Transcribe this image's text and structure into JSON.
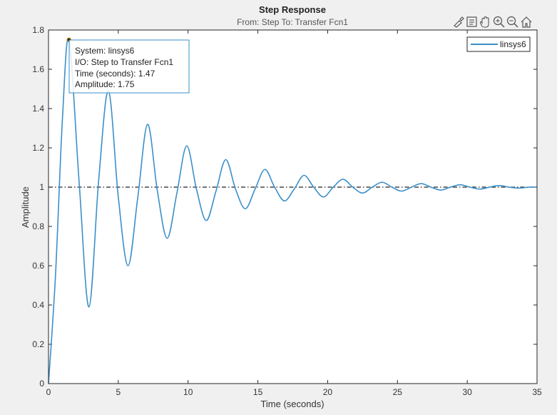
{
  "figure": {
    "title": "Step Response",
    "subtitle": "From: Step  To: Transfer Fcn1"
  },
  "toolbar": {
    "icons": [
      "brush-icon",
      "datatip-icon",
      "pan-icon",
      "zoom-in-icon",
      "zoom-out-icon",
      "home-icon"
    ]
  },
  "legend": {
    "label": "linsys6"
  },
  "datatip": {
    "system": "System: linsys6",
    "io": "I/O: Step to Transfer Fcn1",
    "time": "Time (seconds): 1.47",
    "amplitude": "Amplitude: 1.75"
  },
  "colors": {
    "series": "#3b8fc9",
    "background": "#f0f0f0",
    "axes": "#ffffff",
    "reference_line": "#222222"
  },
  "chart_data": {
    "type": "line",
    "title": "Step Response",
    "subtitle": "From: Step  To: Transfer Fcn1",
    "xlabel": "Time (seconds)",
    "ylabel": "Amplitude",
    "xlim": [
      0,
      35
    ],
    "ylim": [
      0,
      1.8
    ],
    "xticks": [
      0,
      5,
      10,
      15,
      20,
      25,
      30,
      35
    ],
    "yticks": [
      0,
      0.2,
      0.4,
      0.6,
      0.8,
      1,
      1.2,
      1.4,
      1.6,
      1.8
    ],
    "ytick_labels": [
      "0",
      "0.2",
      "0.4",
      "0.6",
      "0.8",
      "1",
      "1.2",
      "1.4",
      "1.6",
      "1.8"
    ],
    "grid": false,
    "legend_position": "top-right",
    "reference_line": {
      "y": 1,
      "style": "dash-dot"
    },
    "series": [
      {
        "name": "linsys6",
        "x": [
          0,
          0.5,
          1.0,
          1.47,
          2.2,
          2.9,
          3.6,
          4.3,
          5.0,
          5.7,
          6.4,
          7.1,
          7.8,
          8.5,
          9.2,
          9.9,
          10.6,
          11.3,
          12.0,
          12.7,
          13.4,
          14.1,
          14.8,
          15.5,
          16.2,
          16.9,
          17.6,
          18.3,
          19.0,
          19.7,
          20.4,
          21.1,
          21.8,
          22.5,
          23.2,
          23.9,
          24.6,
          25.3,
          26.0,
          26.7,
          27.4,
          28.1,
          28.8,
          29.5,
          30.2,
          30.9,
          31.6,
          32.3,
          33.0,
          33.7,
          34.4,
          35.0
        ],
        "y": [
          0,
          0.55,
          1.35,
          1.75,
          1.02,
          0.39,
          1.04,
          1.49,
          0.95,
          0.6,
          0.95,
          1.32,
          0.98,
          0.74,
          0.97,
          1.21,
          0.99,
          0.83,
          0.98,
          1.14,
          0.99,
          0.89,
          0.99,
          1.09,
          1.0,
          0.93,
          0.99,
          1.06,
          1.0,
          0.95,
          1.0,
          1.04,
          1.0,
          0.97,
          1.0,
          1.025,
          1.0,
          0.98,
          1.0,
          1.018,
          1.0,
          0.985,
          1.0,
          1.012,
          1.0,
          0.99,
          1.0,
          1.008,
          1.0,
          0.995,
          1.0,
          1.0
        ]
      }
    ],
    "datatip_point": {
      "x": 1.47,
      "y": 1.75
    }
  }
}
